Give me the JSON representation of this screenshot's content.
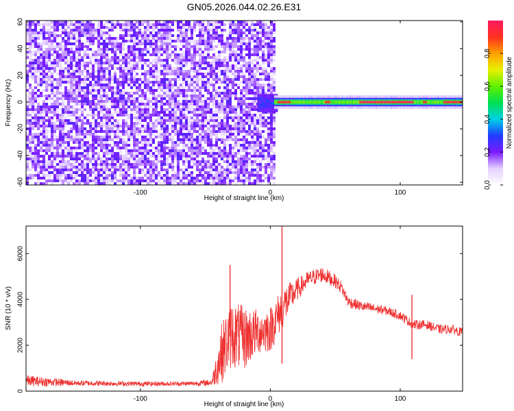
{
  "title": "GN05.2026.044.02.26.E31",
  "chart_data": [
    {
      "type": "heatmap",
      "xlabel": "Height of straight line (km)",
      "ylabel": "Frequency (Hz)",
      "xlim": [
        -188,
        148
      ],
      "ylim": [
        -62,
        61
      ],
      "xticks": [
        -100,
        0,
        100
      ],
      "yticks": [
        60,
        40,
        20,
        0,
        -20,
        -40,
        -60
      ],
      "colorbar": {
        "label": "Normalized spectral amplitude",
        "range": [
          0,
          1
        ],
        "ticks": [
          0.0,
          0.2,
          0.4,
          0.6,
          0.8
        ]
      },
      "regions": [
        {
          "x_range": [
            -188,
            3
          ],
          "y_range": [
            -62,
            61
          ],
          "amplitude": [
            0.0,
            0.12
          ],
          "pattern": "broadband noise"
        },
        {
          "x_range": [
            3,
            148
          ],
          "y_center": 0,
          "half_width_hz": 2,
          "amplitude": [
            0.4,
            1.0
          ],
          "pattern": "narrow band at 0 Hz"
        }
      ],
      "peak_segments": [
        {
          "x": [
            5,
            15
          ],
          "amplitude": 0.95
        },
        {
          "x": [
            42,
            46
          ],
          "amplitude": 0.95
        },
        {
          "x": [
            68,
            110
          ],
          "amplitude": 0.98
        },
        {
          "x": [
            117,
            120
          ],
          "amplitude": 0.95
        },
        {
          "x": [
            133,
            148
          ],
          "amplitude": 0.95
        }
      ]
    },
    {
      "type": "line",
      "xlabel": "Height of straight line (km)",
      "ylabel": "SNR (10 * v/v)",
      "xlim": [
        -188,
        148
      ],
      "ylim": [
        0,
        7200
      ],
      "xticks": [
        -100,
        0,
        100
      ],
      "yticks": [
        0,
        2000,
        4000,
        6000
      ],
      "color": "#ee3030",
      "series": [
        {
          "x": [
            -188,
            -150,
            -100,
            -60,
            -45,
            -38,
            -30,
            -20,
            -10,
            0,
            10,
            20,
            30,
            40,
            50,
            55,
            60,
            70,
            80,
            90,
            100,
            110,
            120,
            130,
            140,
            148
          ],
          "y": [
            450,
            350,
            320,
            330,
            380,
            1600,
            2500,
            2300,
            2600,
            2700,
            3700,
            4400,
            4900,
            5100,
            4800,
            4500,
            3900,
            3700,
            3600,
            3500,
            3300,
            2900,
            2900,
            2700,
            2700,
            2550
          ],
          "noise": [
            250,
            120,
            100,
            100,
            150,
            1300,
            1500,
            1400,
            1000,
            1000,
            900,
            500,
            350,
            350,
            300,
            280,
            250,
            220,
            220,
            200,
            200,
            200,
            200,
            200,
            200,
            200
          ]
        }
      ],
      "spikes": [
        {
          "x": 9,
          "y": 7200
        },
        {
          "x": 9,
          "y": 1200
        },
        {
          "x": -31,
          "y": 5500
        },
        {
          "x": 109,
          "y": 4200
        },
        {
          "x": 109,
          "y": 1400
        }
      ]
    }
  ]
}
